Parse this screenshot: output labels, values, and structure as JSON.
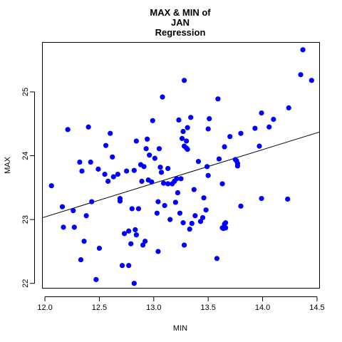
{
  "chart_data": {
    "type": "scatter",
    "title": [
      "MAX & MIN of",
      "JAN",
      "Regression"
    ],
    "xlabel": "MIN",
    "ylabel": "MAX",
    "xlim": [
      11.98,
      14.52
    ],
    "ylim": [
      21.93,
      25.77
    ],
    "x_ticks": [
      12.0,
      12.5,
      13.0,
      13.5,
      14.0,
      14.5
    ],
    "x_tick_labels": [
      "12.0",
      "12.5",
      "13.0",
      "13.5",
      "14.0",
      "14.5"
    ],
    "y_ticks": [
      22,
      23,
      24,
      25
    ],
    "y_tick_labels": [
      "22",
      "23",
      "24",
      "25"
    ],
    "point_color": "#0000ff",
    "line_color": "#000000",
    "grid": false,
    "regression_line": {
      "x": [
        11.98,
        14.52
      ],
      "y": [
        23.03,
        24.37
      ]
    },
    "points": [
      [
        12.06,
        23.53
      ],
      [
        12.16,
        23.2
      ],
      [
        12.17,
        22.88
      ],
      [
        12.21,
        24.41
      ],
      [
        12.26,
        23.14
      ],
      [
        12.27,
        22.88
      ],
      [
        12.32,
        23.9
      ],
      [
        12.33,
        22.37
      ],
      [
        12.34,
        23.76
      ],
      [
        12.36,
        22.66
      ],
      [
        12.38,
        23.06
      ],
      [
        12.4,
        24.45
      ],
      [
        12.42,
        23.9
      ],
      [
        12.43,
        23.28
      ],
      [
        12.47,
        22.06
      ],
      [
        12.49,
        23.79
      ],
      [
        12.5,
        22.55
      ],
      [
        12.55,
        23.71
      ],
      [
        12.56,
        24.16
      ],
      [
        12.58,
        23.6
      ],
      [
        12.6,
        24.35
      ],
      [
        12.62,
        23.98
      ],
      [
        12.63,
        23.67
      ],
      [
        12.67,
        23.71
      ],
      [
        12.69,
        23.33
      ],
      [
        12.69,
        23.29
      ],
      [
        12.71,
        22.28
      ],
      [
        12.73,
        22.78
      ],
      [
        12.75,
        23.76
      ],
      [
        12.77,
        22.28
      ],
      [
        12.79,
        22.62
      ],
      [
        12.8,
        23.17
      ],
      [
        12.82,
        23.77
      ],
      [
        12.82,
        22.0
      ],
      [
        12.83,
        22.84
      ],
      [
        12.84,
        22.76
      ],
      [
        12.84,
        24.23
      ],
      [
        12.86,
        23.17
      ],
      [
        12.88,
        23.86
      ],
      [
        12.89,
        23.6
      ],
      [
        12.9,
        22.6
      ],
      [
        12.91,
        23.83
      ],
      [
        12.92,
        22.66
      ],
      [
        12.93,
        24.11
      ],
      [
        12.94,
        24.26
      ],
      [
        12.95,
        23.62
      ],
      [
        12.96,
        24.01
      ],
      [
        12.98,
        23.59
      ],
      [
        12.99,
        24.55
      ],
      [
        13.01,
        23.96
      ],
      [
        13.03,
        23.1
      ],
      [
        13.04,
        22.5
      ],
      [
        13.04,
        23.28
      ],
      [
        13.05,
        24.11
      ],
      [
        13.06,
        23.82
      ],
      [
        13.07,
        23.74
      ],
      [
        13.08,
        24.92
      ],
      [
        13.09,
        23.57
      ],
      [
        13.1,
        23.22
      ],
      [
        13.13,
        23.8
      ],
      [
        13.13,
        23.56
      ],
      [
        13.15,
        23.0
      ],
      [
        13.17,
        23.56
      ],
      [
        13.19,
        23.6
      ],
      [
        13.2,
        23.27
      ],
      [
        13.21,
        23.64
      ],
      [
        13.22,
        23.42
      ],
      [
        13.23,
        24.56
      ],
      [
        13.24,
        23.1
      ],
      [
        13.25,
        23.64
      ],
      [
        13.26,
        24.27
      ],
      [
        13.27,
        24.38
      ],
      [
        13.27,
        22.95
      ],
      [
        13.28,
        22.6
      ],
      [
        13.28,
        24.15
      ],
      [
        13.28,
        25.18
      ],
      [
        13.3,
        24.12
      ],
      [
        13.3,
        24.23
      ],
      [
        13.31,
        24.44
      ],
      [
        13.31,
        24.1
      ],
      [
        13.33,
        22.85
      ],
      [
        13.34,
        24.6
      ],
      [
        13.35,
        22.94
      ],
      [
        13.37,
        23.47
      ],
      [
        13.38,
        23.06
      ],
      [
        13.41,
        23.91
      ],
      [
        13.43,
        22.97
      ],
      [
        13.45,
        23.03
      ],
      [
        13.46,
        23.34
      ],
      [
        13.48,
        23.15
      ],
      [
        13.49,
        23.83
      ],
      [
        13.5,
        23.69
      ],
      [
        13.5,
        24.42
      ],
      [
        13.51,
        24.58
      ],
      [
        13.58,
        22.39
      ],
      [
        13.59,
        24.89
      ],
      [
        13.6,
        23.95
      ],
      [
        13.63,
        23.56
      ],
      [
        13.63,
        22.87
      ],
      [
        13.64,
        22.86
      ],
      [
        13.65,
        22.93
      ],
      [
        13.65,
        24.14
      ],
      [
        13.66,
        22.95
      ],
      [
        13.66,
        22.87
      ],
      [
        13.7,
        24.3
      ],
      [
        13.75,
        23.94
      ],
      [
        13.76,
        23.92
      ],
      [
        13.77,
        23.88
      ],
      [
        13.77,
        23.84
      ],
      [
        13.8,
        23.21
      ],
      [
        13.8,
        24.35
      ],
      [
        13.93,
        24.43
      ],
      [
        13.97,
        24.15
      ],
      [
        13.99,
        23.33
      ],
      [
        13.99,
        24.67
      ],
      [
        14.06,
        24.45
      ],
      [
        14.1,
        24.57
      ],
      [
        14.23,
        23.32
      ],
      [
        14.24,
        24.75
      ],
      [
        14.35,
        25.27
      ],
      [
        14.37,
        25.66
      ],
      [
        14.45,
        25.18
      ],
      [
        12.77,
        22.82
      ]
    ]
  }
}
